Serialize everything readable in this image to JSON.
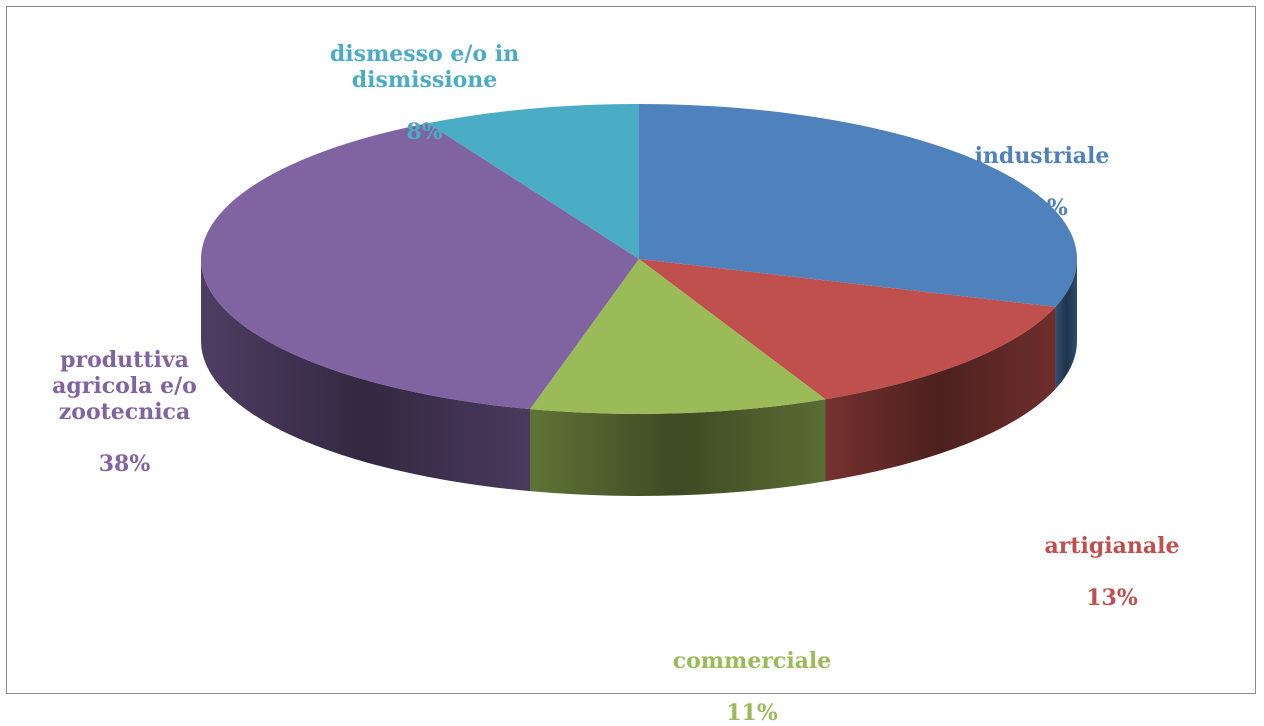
{
  "chart_data": {
    "type": "pie",
    "title": "",
    "slices": [
      {
        "label": "industriale",
        "percent_label": "30%",
        "value": 30,
        "color": "#4f81bd"
      },
      {
        "label": "artigianale",
        "percent_label": "13%",
        "value": 13,
        "color": "#c0504d"
      },
      {
        "label": "commerciale",
        "percent_label": "11%",
        "value": 11,
        "color": "#9bbb59"
      },
      {
        "label": "produttiva agricola e/o zootecnica",
        "percent_label": "38%",
        "value": 38,
        "color": "#8064a2"
      },
      {
        "label": "dismesso e/o in dismissione",
        "percent_label": "8%",
        "value": 8,
        "color": "#4bacc6"
      }
    ]
  }
}
